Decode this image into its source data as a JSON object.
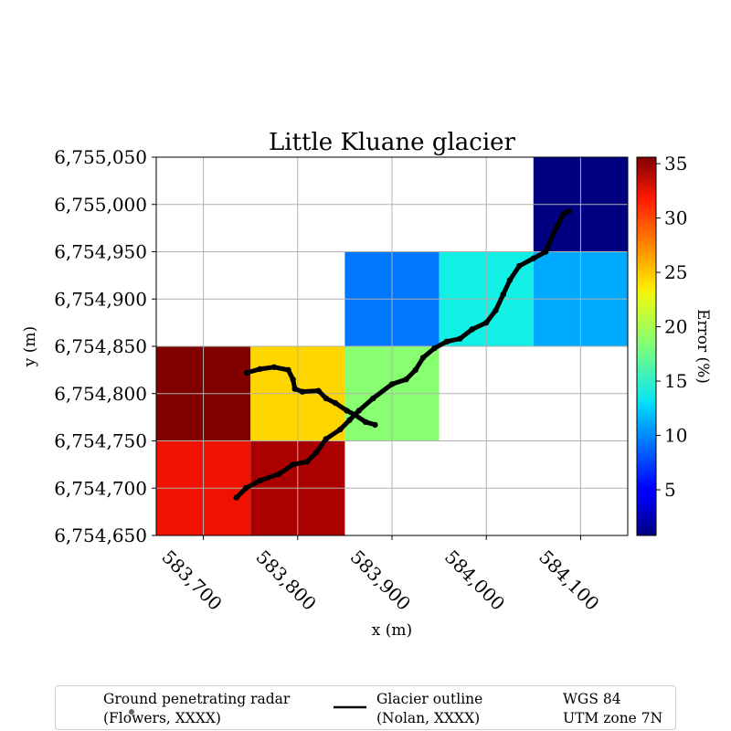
{
  "chart_data": {
    "type": "heatmap",
    "title": "Little Kluane glacier",
    "xlabel": "x (m)",
    "ylabel": "y (m)",
    "xlim": [
      583650,
      584150
    ],
    "ylim": [
      6754650,
      6755050
    ],
    "x_ticks": [
      583700,
      583800,
      583900,
      584000,
      584100
    ],
    "x_tick_labels": [
      "583,700",
      "583,800",
      "583,900",
      "584,000",
      "584,100"
    ],
    "y_ticks": [
      6754650,
      6754700,
      6754750,
      6754800,
      6754850,
      6754900,
      6754950,
      6755000,
      6755050
    ],
    "y_tick_labels": [
      "6,754,650",
      "6,754,700",
      "6,754,750",
      "6,754,800",
      "6,754,850",
      "6,754,900",
      "6,754,950",
      "6,755,000",
      "6,755,050"
    ],
    "grid": true,
    "colormap": "jet",
    "colorbar": {
      "label": "Error (%)",
      "range": [
        0.8,
        35.6
      ],
      "ticks": [
        5,
        10,
        15,
        20,
        25,
        30,
        35
      ],
      "tick_labels": [
        "5",
        "10",
        "15",
        "20",
        "25",
        "30",
        "35"
      ]
    },
    "cells": [
      {
        "x": [
          583650,
          583750
        ],
        "y": [
          6754650,
          6754750
        ],
        "value": 31.5,
        "color": "#f01200"
      },
      {
        "x": [
          583750,
          583850
        ],
        "y": [
          6754650,
          6754750
        ],
        "value": 34.0,
        "color": "#aa0000"
      },
      {
        "x": [
          583650,
          583750
        ],
        "y": [
          6754750,
          6754850
        ],
        "value": 35.5,
        "color": "#800000"
      },
      {
        "x": [
          583750,
          583850
        ],
        "y": [
          6754750,
          6754850
        ],
        "value": 25.0,
        "color": "#ffd500"
      },
      {
        "x": [
          583850,
          583950
        ],
        "y": [
          6754750,
          6754850
        ],
        "value": 18.0,
        "color": "#87ff70"
      },
      {
        "x": [
          583850,
          583950
        ],
        "y": [
          6754850,
          6754950
        ],
        "value": 8.5,
        "color": "#0077ff"
      },
      {
        "x": [
          583950,
          584050
        ],
        "y": [
          6754850,
          6754950
        ],
        "value": 13.0,
        "color": "#12efe4"
      },
      {
        "x": [
          584050,
          584150
        ],
        "y": [
          6754850,
          6754950
        ],
        "value": 10.0,
        "color": "#00aaff"
      },
      {
        "x": [
          584050,
          584150
        ],
        "y": [
          6754950,
          6755050
        ],
        "value": 1.0,
        "color": "#000080"
      }
    ],
    "radar_track": [
      [
        583735,
        6754690
      ],
      [
        583745,
        6754700
      ],
      [
        583760,
        6754708
      ],
      [
        583780,
        6754715
      ],
      [
        583795,
        6754725
      ],
      [
        583810,
        6754728
      ],
      [
        583820,
        6754738
      ],
      [
        583830,
        6754752
      ],
      [
        583845,
        6754762
      ],
      [
        583855,
        6754772
      ],
      [
        583865,
        6754782
      ],
      [
        583880,
        6754795
      ],
      [
        583900,
        6754810
      ],
      [
        583915,
        6754815
      ],
      [
        583925,
        6754825
      ],
      [
        583933,
        6754838
      ],
      [
        583945,
        6754848
      ],
      [
        583958,
        6754855
      ],
      [
        583972,
        6754858
      ],
      [
        583985,
        6754868
      ],
      [
        584000,
        6754875
      ],
      [
        584010,
        6754888
      ],
      [
        584018,
        6754905
      ],
      [
        584025,
        6754920
      ],
      [
        584035,
        6754935
      ],
      [
        584050,
        6754943
      ],
      [
        584063,
        6754950
      ],
      [
        584068,
        6754962
      ],
      [
        584075,
        6754977
      ],
      [
        584082,
        6754990
      ],
      [
        584088,
        6754993
      ]
    ],
    "radar_track_2": [
      [
        583746,
        6754822
      ],
      [
        583760,
        6754826
      ],
      [
        583775,
        6754828
      ],
      [
        583790,
        6754825
      ],
      [
        583795,
        6754815
      ],
      [
        583797,
        6754805
      ],
      [
        583805,
        6754802
      ],
      [
        583822,
        6754803
      ],
      [
        583830,
        6754795
      ],
      [
        583840,
        6754790
      ],
      [
        583852,
        6754782
      ],
      [
        583860,
        6754778
      ],
      [
        583872,
        6754770
      ],
      [
        583882,
        6754767
      ]
    ],
    "legend": [
      {
        "label": "Ground penetrating radar",
        "sub": "(Flowers, XXXX)",
        "marker": "dot"
      },
      {
        "label": "Glacier outline",
        "sub": "(Nolan, XXXX)",
        "marker": "line"
      }
    ],
    "crs_note": [
      "WGS 84",
      "UTM zone 7N"
    ]
  }
}
